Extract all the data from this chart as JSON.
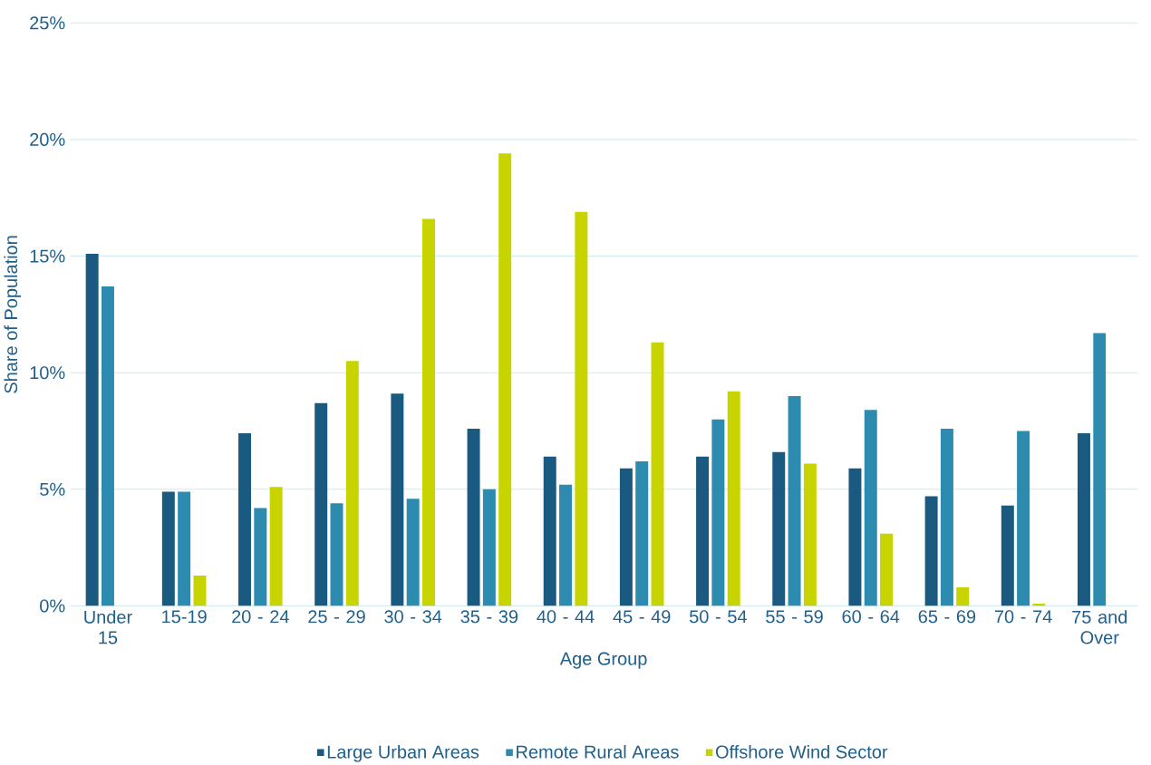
{
  "chart_data": {
    "type": "bar",
    "xlabel": "Age Group",
    "ylabel": "Share of Population",
    "categories": [
      "Under 15",
      "15-19",
      "20 - 24",
      "25 - 29",
      "30 - 34",
      "35 - 39",
      "40 - 44",
      "45 - 49",
      "50 - 54",
      "55 - 59",
      "60 - 64",
      "65 - 69",
      "70 - 74",
      "75 and Over"
    ],
    "series": [
      {
        "name": "Large Urban Areas",
        "color": "#1b5a80",
        "values": [
          15.1,
          4.9,
          7.4,
          8.7,
          9.1,
          7.6,
          6.4,
          5.9,
          6.4,
          6.6,
          5.9,
          4.7,
          4.3,
          7.4
        ]
      },
      {
        "name": "Remote Rural Areas",
        "color": "#2e8bb0",
        "values": [
          13.7,
          4.9,
          4.2,
          4.4,
          4.6,
          5.0,
          5.2,
          6.2,
          8.0,
          9.0,
          8.4,
          7.6,
          7.5,
          11.7
        ]
      },
      {
        "name": "Offshore Wind Sector",
        "color": "#c8d400",
        "values": [
          null,
          1.3,
          5.1,
          10.5,
          16.6,
          19.4,
          16.9,
          11.3,
          9.2,
          6.1,
          3.1,
          0.8,
          0.1,
          null
        ]
      }
    ],
    "ylim": [
      0,
      25
    ],
    "yticks": [
      {
        "value": 0,
        "label": "0%"
      },
      {
        "value": 5,
        "label": "5%"
      },
      {
        "value": 10,
        "label": "10%"
      },
      {
        "value": 15,
        "label": "15%"
      },
      {
        "value": 20,
        "label": "20%"
      },
      {
        "value": 25,
        "label": "25%"
      }
    ],
    "grid": "y",
    "legend": "bottom"
  }
}
